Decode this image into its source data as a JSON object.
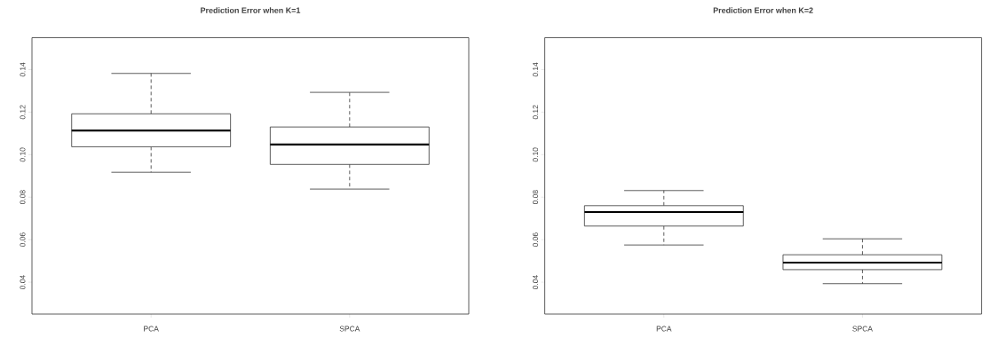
{
  "chart_data": [
    {
      "type": "box",
      "title": "Prediction Error when K=1",
      "categories": [
        "PCA",
        "SPCA"
      ],
      "boxes": [
        {
          "low": 0.0917,
          "q1": 0.1037,
          "median": 0.1113,
          "q3": 0.1192,
          "high": 0.1382
        },
        {
          "low": 0.0838,
          "q1": 0.0954,
          "median": 0.1048,
          "q3": 0.113,
          "high": 0.1293
        }
      ],
      "ylim": [
        0.025,
        0.155
      ],
      "yticks": [
        0.04,
        0.06,
        0.08,
        {
          "value": 0.1,
          "label": "0.10"
        },
        0.12,
        0.14
      ]
    },
    {
      "type": "box",
      "title": "Prediction Error when K=2",
      "categories": [
        "PCA",
        "SPCA"
      ],
      "boxes": [
        {
          "low": 0.0575,
          "q1": 0.0664,
          "median": 0.073,
          "q3": 0.076,
          "high": 0.0831
        },
        {
          "low": 0.0393,
          "q1": 0.0459,
          "median": 0.0492,
          "q3": 0.0529,
          "high": 0.0604
        }
      ],
      "ylim": [
        0.025,
        0.155
      ],
      "yticks": [
        0.04,
        0.06,
        0.08,
        {
          "value": 0.1,
          "label": "0.10"
        },
        0.12,
        0.14
      ]
    }
  ]
}
